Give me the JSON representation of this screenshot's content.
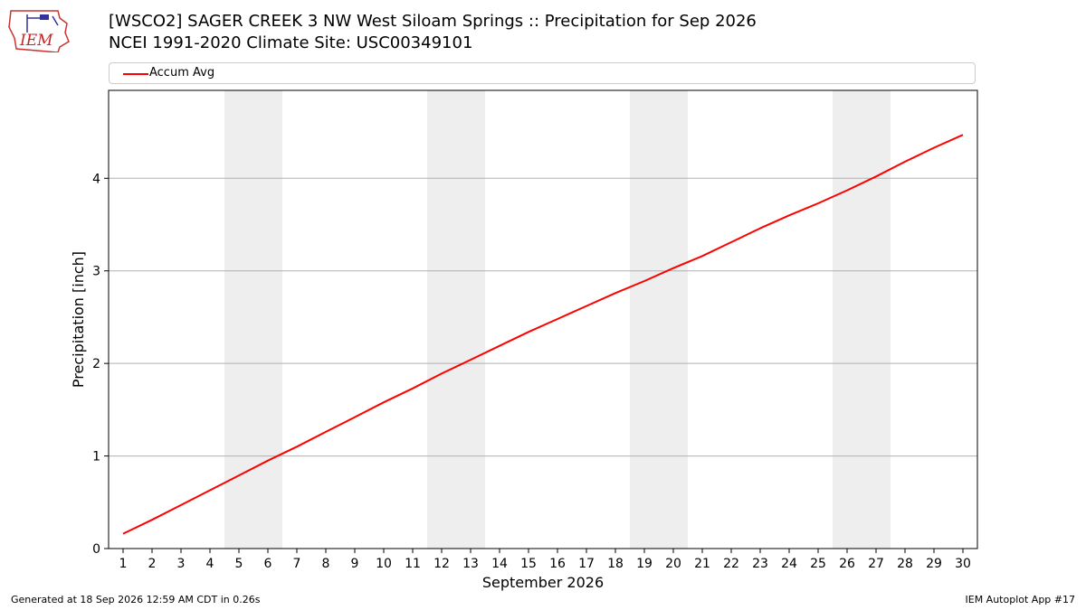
{
  "header": {
    "logo_text": "IEM",
    "title_line1": "[WSCO2] SAGER CREEK 3 NW West Siloam Springs :: Precipitation for Sep 2026",
    "title_line2": "NCEI 1991-2020 Climate Site: USC00349101"
  },
  "footer": {
    "generated": "Generated at 18 Sep 2026 12:59 AM CDT in 0.26s",
    "app": "IEM Autoplot App #17"
  },
  "colors": {
    "line": "#ff0000",
    "weekend_band": "#eeeeee",
    "grid": "#b0b0b0"
  },
  "chart_data": {
    "type": "line",
    "xlabel": "September 2026",
    "ylabel": "Precipitation [inch]",
    "xlim": [
      0.5,
      30.5
    ],
    "ylim": [
      0,
      4.95
    ],
    "yticks": [
      0,
      1,
      2,
      3,
      4
    ],
    "grid": "horizontal",
    "legend_position": "top",
    "weekend_days": [
      5,
      6,
      12,
      13,
      19,
      20,
      26,
      27
    ],
    "x": [
      1,
      2,
      3,
      4,
      5,
      6,
      7,
      8,
      9,
      10,
      11,
      12,
      13,
      14,
      15,
      16,
      17,
      18,
      19,
      20,
      21,
      22,
      23,
      24,
      25,
      26,
      27,
      28,
      29,
      30
    ],
    "series": [
      {
        "name": "Accum Avg",
        "values": [
          0.16,
          0.31,
          0.47,
          0.63,
          0.79,
          0.95,
          1.1,
          1.26,
          1.42,
          1.58,
          1.73,
          1.89,
          2.04,
          2.19,
          2.34,
          2.48,
          2.62,
          2.76,
          2.89,
          3.03,
          3.16,
          3.31,
          3.46,
          3.6,
          3.73,
          3.87,
          4.02,
          4.18,
          4.33,
          4.47
        ]
      }
    ]
  }
}
